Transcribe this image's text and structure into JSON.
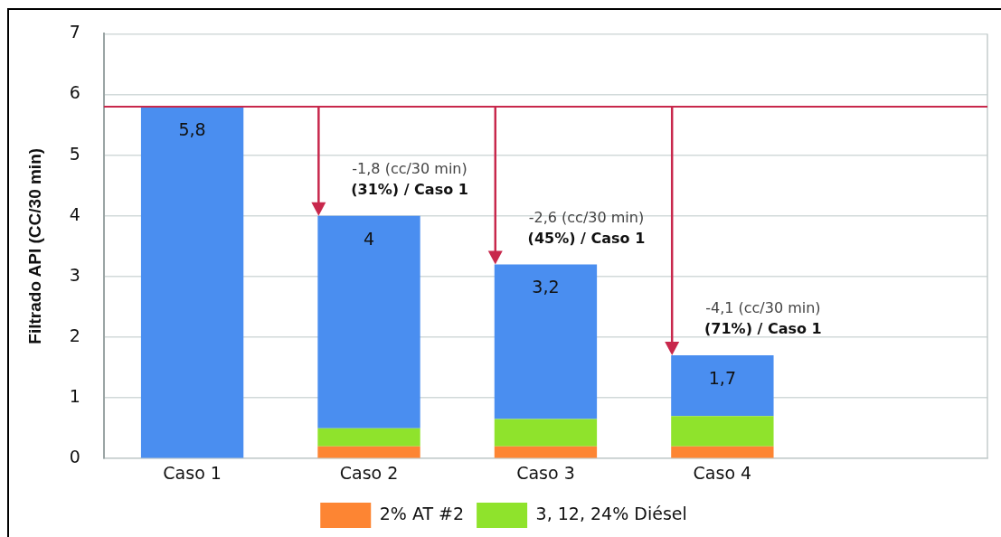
{
  "chart_data": {
    "type": "bar",
    "ylabel": "Filtrado API (CC/30 min)",
    "categories": [
      "Caso 1",
      "Caso 2",
      "Caso 3",
      "Caso 4",
      null
    ],
    "series": [
      {
        "name": "2% AT #2",
        "color": "#fd8533",
        "values": [
          null,
          0.2,
          0.2,
          0.2,
          null
        ]
      },
      {
        "name": "3, 12, 24% Diésel",
        "color": "#8fe32c",
        "values": [
          null,
          0.3,
          0.45,
          0.5,
          null
        ]
      },
      {
        "color": "#4a8ef0",
        "values": [
          5.8,
          3.5,
          2.55,
          1.0,
          null
        ]
      }
    ],
    "stacked": true,
    "totals": [
      "5,8",
      "4",
      "3,2",
      "1,7",
      null
    ],
    "ylim": [
      0,
      7
    ],
    "yticks": [
      0,
      1,
      2,
      3,
      4,
      5,
      6,
      7
    ],
    "grid": "y",
    "legend": "bottom",
    "ref_lines": [
      {
        "axis": "y",
        "value": 5.8,
        "color": "#c8284c"
      }
    ],
    "annotations": [
      {
        "text": "-1,8 (cc/30 min)\n(31%) / Caso 1",
        "x": "Caso 2",
        "y": 4
      },
      {
        "text": "-2,6 (cc/30 min)\n(45%) / Caso 1",
        "x": "Caso 3",
        "y": 3.2
      },
      {
        "text": "-4,1 (cc/30 min)\n(71%) / Caso 1",
        "x": "Caso 4",
        "y": 1.7
      }
    ]
  }
}
